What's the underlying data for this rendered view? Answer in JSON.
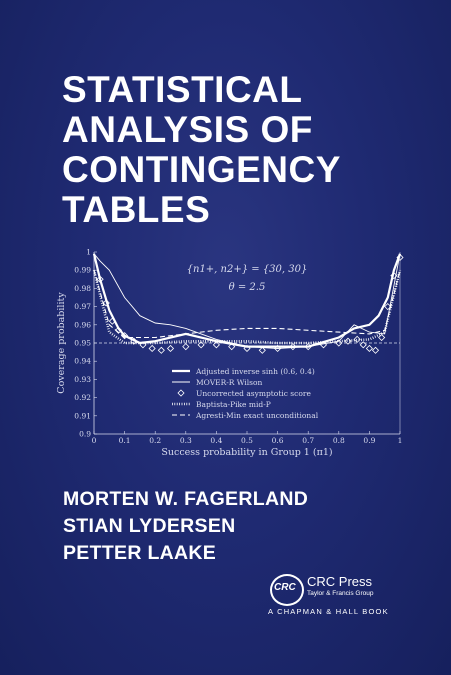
{
  "title_lines": [
    "STATISTICAL",
    "ANALYSIS OF",
    "CONTINGENCY",
    "TABLES"
  ],
  "authors": [
    "MORTEN W. FAGERLAND",
    "STIAN LYDERSEN",
    "PETTER LAAKE"
  ],
  "publisher": {
    "logo_text": "CRC",
    "name": "CRC Press",
    "subname": "Taylor & Francis Group",
    "imprint": "A CHAPMAN & HALL BOOK"
  },
  "chart_data": {
    "type": "line",
    "annotation_line1": "{n1+, n2+} = {30, 30}",
    "annotation_line2": "θ = 2.5",
    "xlabel": "Success probability in Group 1 (π1)",
    "ylabel": "Coverage probability",
    "xlim": [
      0,
      1
    ],
    "ylim": [
      0.9,
      1.0
    ],
    "x_ticks": [
      "0",
      "0.1",
      "0.2",
      "0.3",
      "0.4",
      "0.5",
      "0.6",
      "0.7",
      "0.8",
      "0.9",
      "1"
    ],
    "y_ticks": [
      "0.9",
      "0.91",
      "0.92",
      "0.93",
      "0.94",
      "0.95",
      "0.96",
      "0.97",
      "0.98",
      "0.99",
      "1"
    ],
    "reference_line": 0.95,
    "legend_position": "bottom-center",
    "series": [
      {
        "name": "Adjusted inverse sinh (0.6, 0.4)",
        "style": "thick-solid",
        "x": [
          0.0,
          0.02,
          0.05,
          0.08,
          0.1,
          0.15,
          0.2,
          0.3,
          0.4,
          0.5,
          0.6,
          0.7,
          0.8,
          0.85,
          0.9,
          0.93,
          0.96,
          0.98,
          1.0
        ],
        "y": [
          0.999,
          0.985,
          0.968,
          0.958,
          0.954,
          0.95,
          0.951,
          0.955,
          0.951,
          0.948,
          0.948,
          0.948,
          0.953,
          0.958,
          0.96,
          0.965,
          0.975,
          0.99,
          0.999
        ]
      },
      {
        "name": "MOVER-R Wilson",
        "style": "thin-solid",
        "x": [
          0.0,
          0.02,
          0.05,
          0.1,
          0.15,
          0.2,
          0.25,
          0.3,
          0.4,
          0.5,
          0.6,
          0.7,
          0.8,
          0.85,
          0.9,
          0.95,
          1.0
        ],
        "y": [
          0.999,
          0.995,
          0.99,
          0.975,
          0.965,
          0.961,
          0.96,
          0.958,
          0.952,
          0.948,
          0.947,
          0.948,
          0.951,
          0.96,
          0.956,
          0.955,
          0.999
        ]
      },
      {
        "name": "Uncorrected asymptotic score",
        "style": "diamonds",
        "x": [
          0.02,
          0.04,
          0.06,
          0.08,
          0.1,
          0.13,
          0.16,
          0.19,
          0.22,
          0.25,
          0.3,
          0.35,
          0.4,
          0.45,
          0.5,
          0.55,
          0.6,
          0.65,
          0.7,
          0.75,
          0.8,
          0.83,
          0.86,
          0.88,
          0.9,
          0.92,
          0.94,
          0.96,
          0.98,
          1.0
        ],
        "y": [
          0.985,
          0.972,
          0.962,
          0.957,
          0.954,
          0.951,
          0.949,
          0.947,
          0.946,
          0.947,
          0.948,
          0.949,
          0.949,
          0.948,
          0.947,
          0.946,
          0.947,
          0.948,
          0.948,
          0.949,
          0.95,
          0.951,
          0.952,
          0.949,
          0.947,
          0.946,
          0.953,
          0.97,
          0.987,
          0.997
        ]
      },
      {
        "name": "Baptista-Pike mid-P",
        "style": "dotted",
        "x": [
          0.0,
          0.05,
          0.1,
          0.2,
          0.3,
          0.4,
          0.5,
          0.6,
          0.7,
          0.8,
          0.9,
          0.95,
          1.0
        ],
        "y": [
          0.99,
          0.956,
          0.95,
          0.95,
          0.951,
          0.951,
          0.951,
          0.95,
          0.95,
          0.951,
          0.952,
          0.956,
          0.99
        ]
      },
      {
        "name": "Agresti-Min exact unconditional",
        "style": "dashed",
        "x": [
          0.0,
          0.05,
          0.1,
          0.2,
          0.3,
          0.4,
          0.5,
          0.6,
          0.7,
          0.8,
          0.9,
          0.95,
          1.0
        ],
        "y": [
          0.99,
          0.96,
          0.953,
          0.953,
          0.955,
          0.957,
          0.958,
          0.958,
          0.957,
          0.956,
          0.955,
          0.957,
          0.99
        ]
      }
    ],
    "colors": {
      "axis": "#d8dbee",
      "line": "#ffffff",
      "background": "#1f2a72"
    }
  }
}
